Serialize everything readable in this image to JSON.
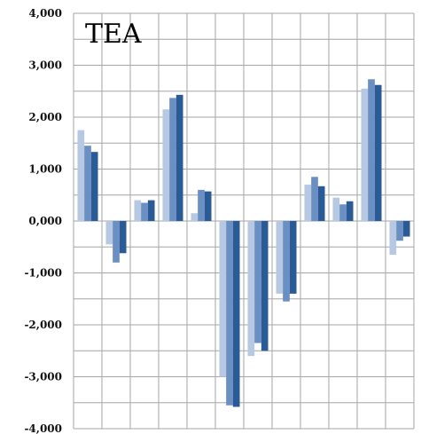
{
  "chart_data": {
    "type": "bar",
    "title": "TEA",
    "xlabel": "",
    "ylabel": "",
    "ylim": [
      -4000,
      4000
    ],
    "yticks": [
      4000,
      3000,
      2000,
      1000,
      0,
      -1000,
      -2000,
      -3000,
      -4000
    ],
    "ytick_labels": [
      "4,000",
      "3,000",
      "2,000",
      "1,000",
      "0,000",
      "-1,000",
      "-2,000",
      "-3,000",
      "-4,000"
    ],
    "grid": true,
    "legend": "none",
    "categories": [
      "",
      "",
      "",
      "",
      "",
      "",
      "",
      "",
      "",
      "",
      "",
      ""
    ],
    "series": [
      {
        "color": "#b7c9e2",
        "values": [
          1750,
          -450,
          400,
          2150,
          150,
          -3000,
          -2600,
          -1400,
          700,
          450,
          2550,
          -650
        ]
      },
      {
        "color": "#6a8fc2",
        "values": [
          1450,
          -800,
          350,
          2370,
          600,
          -3550,
          -2350,
          -1550,
          850,
          320,
          2730,
          -380
        ]
      },
      {
        "color": "#2b5b97",
        "values": [
          1330,
          -620,
          400,
          2430,
          570,
          -3580,
          -2500,
          -1400,
          670,
          380,
          2620,
          -300
        ]
      }
    ]
  }
}
